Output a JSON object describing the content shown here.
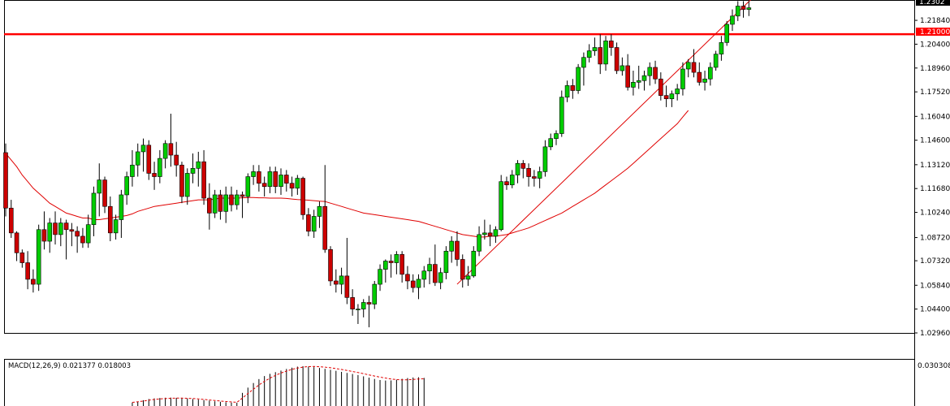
{
  "main_chart": {
    "price_axis_labels": [
      "1.21840",
      "1.20400",
      "1.18960",
      "1.17520",
      "1.16040",
      "1.14600",
      "1.13120",
      "1.11680",
      "1.10240",
      "1.08720",
      "1.07320",
      "1.05840",
      "1.04400",
      "1.02960"
    ],
    "top_price_label": "1.2302",
    "horizontal_level_label": "1.21000",
    "horizontal_level_color": "#ff0000",
    "candle_up_color": "#00cc00",
    "candle_down_color": "#cc0000",
    "ma_color": "#e00000"
  },
  "indicator": {
    "title": "MACD(12,26,9) 0.021377 0.018003",
    "axis_label": "0.030308",
    "histogram_color": "#000000",
    "signal_color": "#e00000"
  },
  "chart_data": [
    {
      "type": "candlestick",
      "title": "",
      "ylim": [
        1.0296,
        1.2302
      ],
      "y_ticks": [
        1.2184,
        1.204,
        1.1896,
        1.1752,
        1.1604,
        1.146,
        1.1312,
        1.1168,
        1.1024,
        1.0872,
        1.0732,
        1.0584,
        1.044,
        1.0296
      ],
      "ohlc": [
        [
          1.1385,
          1.144,
          1.1,
          1.105
        ],
        [
          1.105,
          1.11,
          1.087,
          1.09
        ],
        [
          1.09,
          1.091,
          1.073,
          1.078
        ],
        [
          1.078,
          1.08,
          1.069,
          1.072
        ],
        [
          1.072,
          1.079,
          1.056,
          1.062
        ],
        [
          1.062,
          1.068,
          1.054,
          1.059
        ],
        [
          1.059,
          1.095,
          1.055,
          1.092
        ],
        [
          1.092,
          1.103,
          1.08,
          1.085
        ],
        [
          1.085,
          1.099,
          1.078,
          1.096
        ],
        [
          1.096,
          1.103,
          1.083,
          1.089
        ],
        [
          1.089,
          1.099,
          1.082,
          1.096
        ],
        [
          1.096,
          1.098,
          1.074,
          1.092
        ],
        [
          1.092,
          1.096,
          1.082,
          1.091
        ],
        [
          1.091,
          1.094,
          1.078,
          1.088
        ],
        [
          1.088,
          1.093,
          1.081,
          1.084
        ],
        [
          1.084,
          1.101,
          1.081,
          1.095
        ],
        [
          1.095,
          1.118,
          1.088,
          1.114
        ],
        [
          1.114,
          1.132,
          1.1,
          1.122
        ],
        [
          1.122,
          1.124,
          1.102,
          1.106
        ],
        [
          1.106,
          1.112,
          1.085,
          1.09
        ],
        [
          1.09,
          1.101,
          1.086,
          1.098
        ],
        [
          1.098,
          1.116,
          1.087,
          1.113
        ],
        [
          1.113,
          1.127,
          1.107,
          1.124
        ],
        [
          1.124,
          1.14,
          1.118,
          1.131
        ],
        [
          1.131,
          1.144,
          1.124,
          1.139
        ],
        [
          1.139,
          1.147,
          1.127,
          1.143
        ],
        [
          1.143,
          1.146,
          1.122,
          1.126
        ],
        [
          1.126,
          1.133,
          1.116,
          1.124
        ],
        [
          1.124,
          1.14,
          1.12,
          1.135
        ],
        [
          1.135,
          1.146,
          1.129,
          1.144
        ],
        [
          1.144,
          1.162,
          1.13,
          1.137
        ],
        [
          1.137,
          1.145,
          1.124,
          1.131
        ],
        [
          1.131,
          1.133,
          1.108,
          1.112
        ],
        [
          1.112,
          1.129,
          1.107,
          1.126
        ],
        [
          1.126,
          1.138,
          1.12,
          1.129
        ],
        [
          1.129,
          1.139,
          1.118,
          1.133
        ],
        [
          1.133,
          1.14,
          1.107,
          1.111
        ],
        [
          1.111,
          1.12,
          1.092,
          1.102
        ],
        [
          1.102,
          1.116,
          1.099,
          1.113
        ],
        [
          1.113,
          1.116,
          1.098,
          1.103
        ],
        [
          1.103,
          1.118,
          1.096,
          1.113
        ],
        [
          1.113,
          1.118,
          1.103,
          1.107
        ],
        [
          1.107,
          1.116,
          1.104,
          1.113
        ],
        [
          1.113,
          1.115,
          1.099,
          1.112
        ],
        [
          1.112,
          1.126,
          1.108,
          1.124
        ],
        [
          1.124,
          1.131,
          1.119,
          1.127
        ],
        [
          1.127,
          1.131,
          1.115,
          1.12
        ],
        [
          1.12,
          1.124,
          1.112,
          1.118
        ],
        [
          1.118,
          1.13,
          1.114,
          1.127
        ],
        [
          1.127,
          1.13,
          1.114,
          1.118
        ],
        [
          1.118,
          1.129,
          1.113,
          1.125
        ],
        [
          1.125,
          1.128,
          1.115,
          1.12
        ],
        [
          1.12,
          1.124,
          1.112,
          1.117
        ],
        [
          1.117,
          1.125,
          1.113,
          1.123
        ],
        [
          1.123,
          1.124,
          1.098,
          1.101
        ],
        [
          1.101,
          1.105,
          1.088,
          1.091
        ],
        [
          1.091,
          1.104,
          1.087,
          1.1
        ],
        [
          1.1,
          1.109,
          1.093,
          1.106
        ],
        [
          1.106,
          1.131,
          1.078,
          1.08
        ],
        [
          1.08,
          1.082,
          1.058,
          1.061
        ],
        [
          1.061,
          1.068,
          1.054,
          1.059
        ],
        [
          1.059,
          1.069,
          1.053,
          1.064
        ],
        [
          1.064,
          1.087,
          1.047,
          1.051
        ],
        [
          1.051,
          1.056,
          1.04,
          1.044
        ],
        [
          1.044,
          1.047,
          1.035,
          1.044
        ],
        [
          1.044,
          1.05,
          1.039,
          1.048
        ],
        [
          1.048,
          1.052,
          1.033,
          1.047
        ],
        [
          1.047,
          1.061,
          1.044,
          1.059
        ],
        [
          1.059,
          1.071,
          1.055,
          1.068
        ],
        [
          1.068,
          1.074,
          1.06,
          1.073
        ],
        [
          1.073,
          1.077,
          1.063,
          1.072
        ],
        [
          1.072,
          1.079,
          1.065,
          1.077
        ],
        [
          1.077,
          1.079,
          1.06,
          1.065
        ],
        [
          1.065,
          1.07,
          1.056,
          1.061
        ],
        [
          1.061,
          1.065,
          1.054,
          1.057
        ],
        [
          1.057,
          1.065,
          1.05,
          1.062
        ],
        [
          1.062,
          1.07,
          1.057,
          1.067
        ],
        [
          1.067,
          1.075,
          1.059,
          1.071
        ],
        [
          1.071,
          1.083,
          1.058,
          1.06
        ],
        [
          1.06,
          1.069,
          1.056,
          1.066
        ],
        [
          1.066,
          1.082,
          1.062,
          1.079
        ],
        [
          1.079,
          1.088,
          1.072,
          1.085
        ],
        [
          1.085,
          1.091,
          1.07,
          1.074
        ],
        [
          1.074,
          1.077,
          1.057,
          1.062
        ],
        [
          1.062,
          1.07,
          1.058,
          1.064
        ],
        [
          1.064,
          1.082,
          1.063,
          1.079
        ],
        [
          1.079,
          1.094,
          1.076,
          1.089
        ],
        [
          1.089,
          1.098,
          1.086,
          1.09
        ],
        [
          1.09,
          1.095,
          1.082,
          1.088
        ],
        [
          1.088,
          1.094,
          1.084,
          1.092
        ],
        [
          1.092,
          1.125,
          1.091,
          1.121
        ],
        [
          1.121,
          1.124,
          1.116,
          1.119
        ],
        [
          1.119,
          1.128,
          1.117,
          1.125
        ],
        [
          1.125,
          1.134,
          1.12,
          1.132
        ],
        [
          1.132,
          1.134,
          1.123,
          1.129
        ],
        [
          1.129,
          1.132,
          1.118,
          1.124
        ],
        [
          1.124,
          1.128,
          1.118,
          1.123
        ],
        [
          1.123,
          1.13,
          1.117,
          1.127
        ],
        [
          1.127,
          1.146,
          1.124,
          1.142
        ],
        [
          1.142,
          1.15,
          1.14,
          1.147
        ],
        [
          1.147,
          1.152,
          1.143,
          1.15
        ],
        [
          1.15,
          1.176,
          1.148,
          1.172
        ],
        [
          1.172,
          1.182,
          1.169,
          1.179
        ],
        [
          1.179,
          1.183,
          1.171,
          1.176
        ],
        [
          1.176,
          1.192,
          1.174,
          1.19
        ],
        [
          1.19,
          1.199,
          1.179,
          1.196
        ],
        [
          1.196,
          1.204,
          1.193,
          1.2
        ],
        [
          1.2,
          1.208,
          1.197,
          1.202
        ],
        [
          1.202,
          1.21,
          1.186,
          1.192
        ],
        [
          1.192,
          1.209,
          1.188,
          1.206
        ],
        [
          1.206,
          1.21,
          1.197,
          1.202
        ],
        [
          1.202,
          1.205,
          1.186,
          1.188
        ],
        [
          1.188,
          1.196,
          1.185,
          1.191
        ],
        [
          1.191,
          1.198,
          1.176,
          1.178
        ],
        [
          1.178,
          1.188,
          1.173,
          1.181
        ],
        [
          1.181,
          1.191,
          1.177,
          1.182
        ],
        [
          1.182,
          1.188,
          1.176,
          1.185
        ],
        [
          1.185,
          1.193,
          1.179,
          1.19
        ],
        [
          1.19,
          1.194,
          1.18,
          1.183
        ],
        [
          1.183,
          1.187,
          1.17,
          1.173
        ],
        [
          1.173,
          1.179,
          1.166,
          1.171
        ],
        [
          1.171,
          1.176,
          1.166,
          1.174
        ],
        [
          1.174,
          1.18,
          1.17,
          1.177
        ],
        [
          1.177,
          1.193,
          1.173,
          1.189
        ],
        [
          1.189,
          1.195,
          1.184,
          1.193
        ],
        [
          1.193,
          1.201,
          1.184,
          1.187
        ],
        [
          1.187,
          1.193,
          1.179,
          1.181
        ],
        [
          1.181,
          1.188,
          1.176,
          1.183
        ],
        [
          1.183,
          1.193,
          1.179,
          1.19
        ],
        [
          1.19,
          1.2,
          1.188,
          1.198
        ],
        [
          1.198,
          1.209,
          1.194,
          1.205
        ],
        [
          1.205,
          1.218,
          1.203,
          1.216
        ],
        [
          1.216,
          1.225,
          1.212,
          1.221
        ],
        [
          1.221,
          1.23,
          1.218,
          1.227
        ],
        [
          1.227,
          1.23,
          1.22,
          1.225
        ],
        [
          1.225,
          1.23,
          1.221,
          1.226
        ]
      ],
      "sma_fast": [
        1.138,
        1.134,
        1.13,
        1.125,
        1.121,
        1.117,
        1.114,
        1.111,
        1.108,
        1.106,
        1.104,
        1.102,
        1.101,
        1.1,
        1.099,
        1.099,
        1.098,
        1.098,
        1.0985,
        1.099,
        1.0995,
        1.1,
        1.1005,
        1.1015,
        1.103,
        1.104,
        1.105,
        1.106,
        1.1065,
        1.107,
        1.1075,
        1.108,
        1.1085,
        1.109,
        1.1095,
        1.11,
        1.11,
        1.11,
        1.1105,
        1.111,
        1.111,
        1.111,
        1.111,
        1.1112,
        1.1114,
        1.1114,
        1.1112,
        1.1112,
        1.111,
        1.111,
        1.111,
        1.1108,
        1.1105,
        1.1102,
        1.11,
        1.1098,
        1.1095,
        1.1092,
        1.109,
        1.108,
        1.107,
        1.106,
        1.105,
        1.104,
        1.103,
        1.102,
        1.1015,
        1.101,
        1.1005,
        1.1,
        1.0995,
        1.099,
        1.0985,
        1.098,
        1.0975,
        1.097,
        1.096,
        1.095,
        1.094,
        1.093,
        1.092,
        1.091,
        1.09,
        1.089,
        1.0885,
        1.088,
        1.0875,
        1.0875,
        1.088,
        1.088,
        1.0885,
        1.089,
        1.09,
        1.091,
        1.092,
        1.093,
        1.0945,
        1.096,
        1.0975,
        1.099,
        1.1005,
        1.102,
        1.104,
        1.106,
        1.108,
        1.11,
        1.112,
        1.114,
        1.1165,
        1.119,
        1.1215,
        1.124,
        1.1265,
        1.129,
        1.132,
        1.135,
        1.138,
        1.141,
        1.144,
        1.147,
        1.15,
        1.153,
        1.156,
        1.16,
        1.164
      ],
      "macd_histogram": [
        0.0026,
        0.0034,
        0.0044,
        0.0053,
        0.0058,
        0.0061,
        0.0063,
        0.0064,
        0.0062,
        0.006,
        0.0057,
        0.0053,
        0.0049,
        0.0045,
        0.0041,
        0.0036,
        0.0032,
        0.0029,
        0.0026,
        0.0025,
        0.01,
        0.014,
        0.0175,
        0.0205,
        0.0228,
        0.0245,
        0.0258,
        0.027,
        0.0282,
        0.0292,
        0.03,
        0.0303,
        0.03,
        0.0296,
        0.029,
        0.0283,
        0.0276,
        0.0268,
        0.026,
        0.0252,
        0.0244,
        0.0236,
        0.0226,
        0.0216,
        0.0206,
        0.0198,
        0.0194,
        0.0195,
        0.02,
        0.0207,
        0.0213,
        0.0217,
        0.0219,
        0.0214
      ],
      "macd_signal": [
        0.0028,
        0.0032,
        0.0038,
        0.0044,
        0.005,
        0.0054,
        0.0057,
        0.0059,
        0.006,
        0.006,
        0.0059,
        0.0057,
        0.0054,
        0.005,
        0.0046,
        0.0042,
        0.0038,
        0.0034,
        0.0031,
        0.0028,
        0.006,
        0.0095,
        0.0128,
        0.016,
        0.0188,
        0.0212,
        0.0233,
        0.0251,
        0.0266,
        0.0279,
        0.0289,
        0.0296,
        0.03,
        0.0301,
        0.0299,
        0.0296,
        0.0291,
        0.0285,
        0.0278,
        0.0271,
        0.0263,
        0.0255,
        0.0246,
        0.0237,
        0.0228,
        0.022,
        0.0213,
        0.0206,
        0.0201,
        0.0199,
        0.02,
        0.0202,
        0.0205,
        0.0208
      ]
    }
  ]
}
